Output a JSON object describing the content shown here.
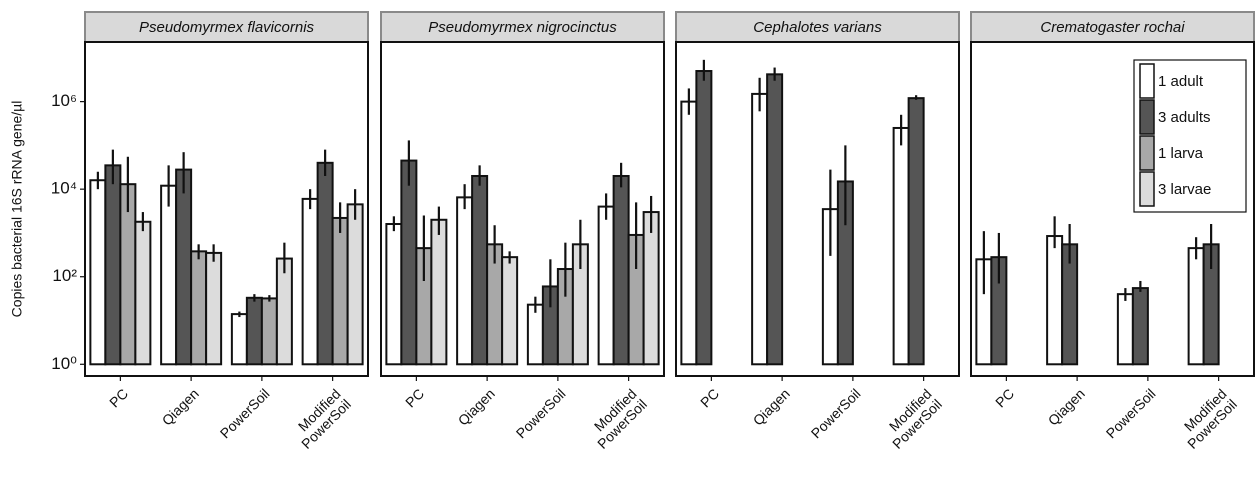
{
  "chart_data": [
    {
      "type": "bar",
      "title": "Pseudomyrmex flavicornis",
      "y_label": "Copies bacterial 16S rRNA gene/µl",
      "yscale": "log",
      "ylim": [
        0.54,
        23000000
      ],
      "yticks": [
        {
          "value": 1,
          "label": "10⁰"
        },
        {
          "value": 100,
          "label": "10²"
        },
        {
          "value": 10000,
          "label": "10⁴"
        },
        {
          "value": 1000000,
          "label": "10⁶"
        }
      ],
      "categories": [
        "PC",
        "Qiagen",
        "PowerSoil",
        "Modified\nPowerSoil"
      ],
      "series": [
        {
          "color": "#ffffff",
          "values": [
            16000,
            12000,
            14,
            6000
          ],
          "error_low": [
            10000,
            4000,
            12,
            3500
          ],
          "error_high": [
            25000,
            35000,
            16,
            10000
          ]
        },
        {
          "color": "#555555",
          "values": [
            35000,
            28000,
            33,
            40000
          ],
          "error_low": [
            13000,
            8000,
            27,
            20000
          ],
          "error_high": [
            80000,
            70000,
            40,
            80000
          ]
        },
        {
          "color": "#a8a8a8",
          "values": [
            13000,
            380,
            32,
            2200
          ],
          "error_low": [
            3000,
            250,
            27,
            1000
          ],
          "error_high": [
            55000,
            550,
            38,
            5000
          ]
        },
        {
          "color": "#dcdcdc",
          "values": [
            1800,
            350,
            260,
            4500
          ],
          "error_low": [
            1100,
            220,
            120,
            2000
          ],
          "error_high": [
            3000,
            550,
            600,
            10000
          ]
        }
      ]
    },
    {
      "type": "bar",
      "title": "Pseudomyrmex nigrocinctus",
      "yscale": "log",
      "ylim": [
        0.54,
        23000000
      ],
      "categories": [
        "PC",
        "Qiagen",
        "PowerSoil",
        "Modified\nPowerSoil"
      ],
      "series": [
        {
          "color": "#ffffff",
          "values": [
            1600,
            6500,
            23,
            4000
          ],
          "error_low": [
            1100,
            3500,
            15,
            2000
          ],
          "error_high": [
            2400,
            13000,
            35,
            8000
          ]
        },
        {
          "color": "#555555",
          "values": [
            45000,
            20000,
            60,
            20000
          ],
          "error_low": [
            12000,
            12000,
            20,
            11000
          ],
          "error_high": [
            130000,
            35000,
            250,
            40000
          ]
        },
        {
          "color": "#a8a8a8",
          "values": [
            450,
            550,
            150,
            900
          ],
          "error_low": [
            80,
            200,
            35,
            150
          ],
          "error_high": [
            2500,
            1500,
            600,
            5000
          ]
        },
        {
          "color": "#dcdcdc",
          "values": [
            2000,
            280,
            550,
            3000
          ],
          "error_low": [
            900,
            200,
            150,
            1000
          ],
          "error_high": [
            4000,
            380,
            2000,
            7000
          ]
        }
      ]
    },
    {
      "type": "bar",
      "title": "Cephalotes varians",
      "yscale": "log",
      "ylim": [
        0.54,
        23000000
      ],
      "categories": [
        "PC",
        "Qiagen",
        "PowerSoil",
        "Modified\nPowerSoil"
      ],
      "series": [
        {
          "color": "#ffffff",
          "values": [
            1000000,
            1500000,
            3500,
            250000
          ],
          "error_low": [
            500000,
            600000,
            300,
            100000
          ],
          "error_high": [
            2000000,
            3500000,
            28000,
            500000
          ]
        },
        {
          "color": "#555555",
          "values": [
            5000000,
            4200000,
            15000,
            1200000
          ],
          "error_low": [
            3000000,
            3000000,
            1500,
            1100000
          ],
          "error_high": [
            9000000,
            6000000,
            100000,
            1400000
          ]
        },
        {
          "color": "#a8a8a8",
          "values": [
            1,
            1,
            1,
            1
          ],
          "error_low": [
            null,
            null,
            null,
            null
          ],
          "error_high": [
            null,
            null,
            null,
            null
          ]
        },
        {
          "color": "#dcdcdc",
          "values": [
            1,
            1,
            1,
            1
          ],
          "error_low": [
            null,
            null,
            null,
            null
          ],
          "error_high": [
            null,
            null,
            null,
            null
          ]
        }
      ]
    },
    {
      "type": "bar",
      "title": "Crematogaster rochai",
      "yscale": "log",
      "ylim": [
        0.54,
        23000000
      ],
      "legend": "top-right",
      "categories": [
        "PC",
        "Qiagen",
        "PowerSoil",
        "Modified\nPowerSoil"
      ],
      "series": [
        {
          "name": "1 adult",
          "color": "#ffffff",
          "values": [
            250,
            850,
            40,
            450
          ],
          "error_low": [
            40,
            450,
            28,
            250
          ],
          "error_high": [
            1100,
            2400,
            55,
            800
          ]
        },
        {
          "name": "3 adults",
          "color": "#555555",
          "values": [
            280,
            550,
            55,
            550
          ],
          "error_low": [
            70,
            200,
            45,
            150
          ],
          "error_high": [
            1000,
            1600,
            80,
            1600
          ]
        },
        {
          "name": "1 larva",
          "color": "#a8a8a8",
          "values": [
            1,
            1,
            1,
            1
          ],
          "error_low": [
            null,
            null,
            null,
            null
          ],
          "error_high": [
            null,
            null,
            null,
            null
          ]
        },
        {
          "name": "3 larvae",
          "color": "#dcdcdc",
          "values": [
            1,
            1,
            1,
            1
          ],
          "error_low": [
            null,
            null,
            null,
            null
          ],
          "error_high": [
            null,
            null,
            null,
            null
          ]
        }
      ]
    }
  ]
}
